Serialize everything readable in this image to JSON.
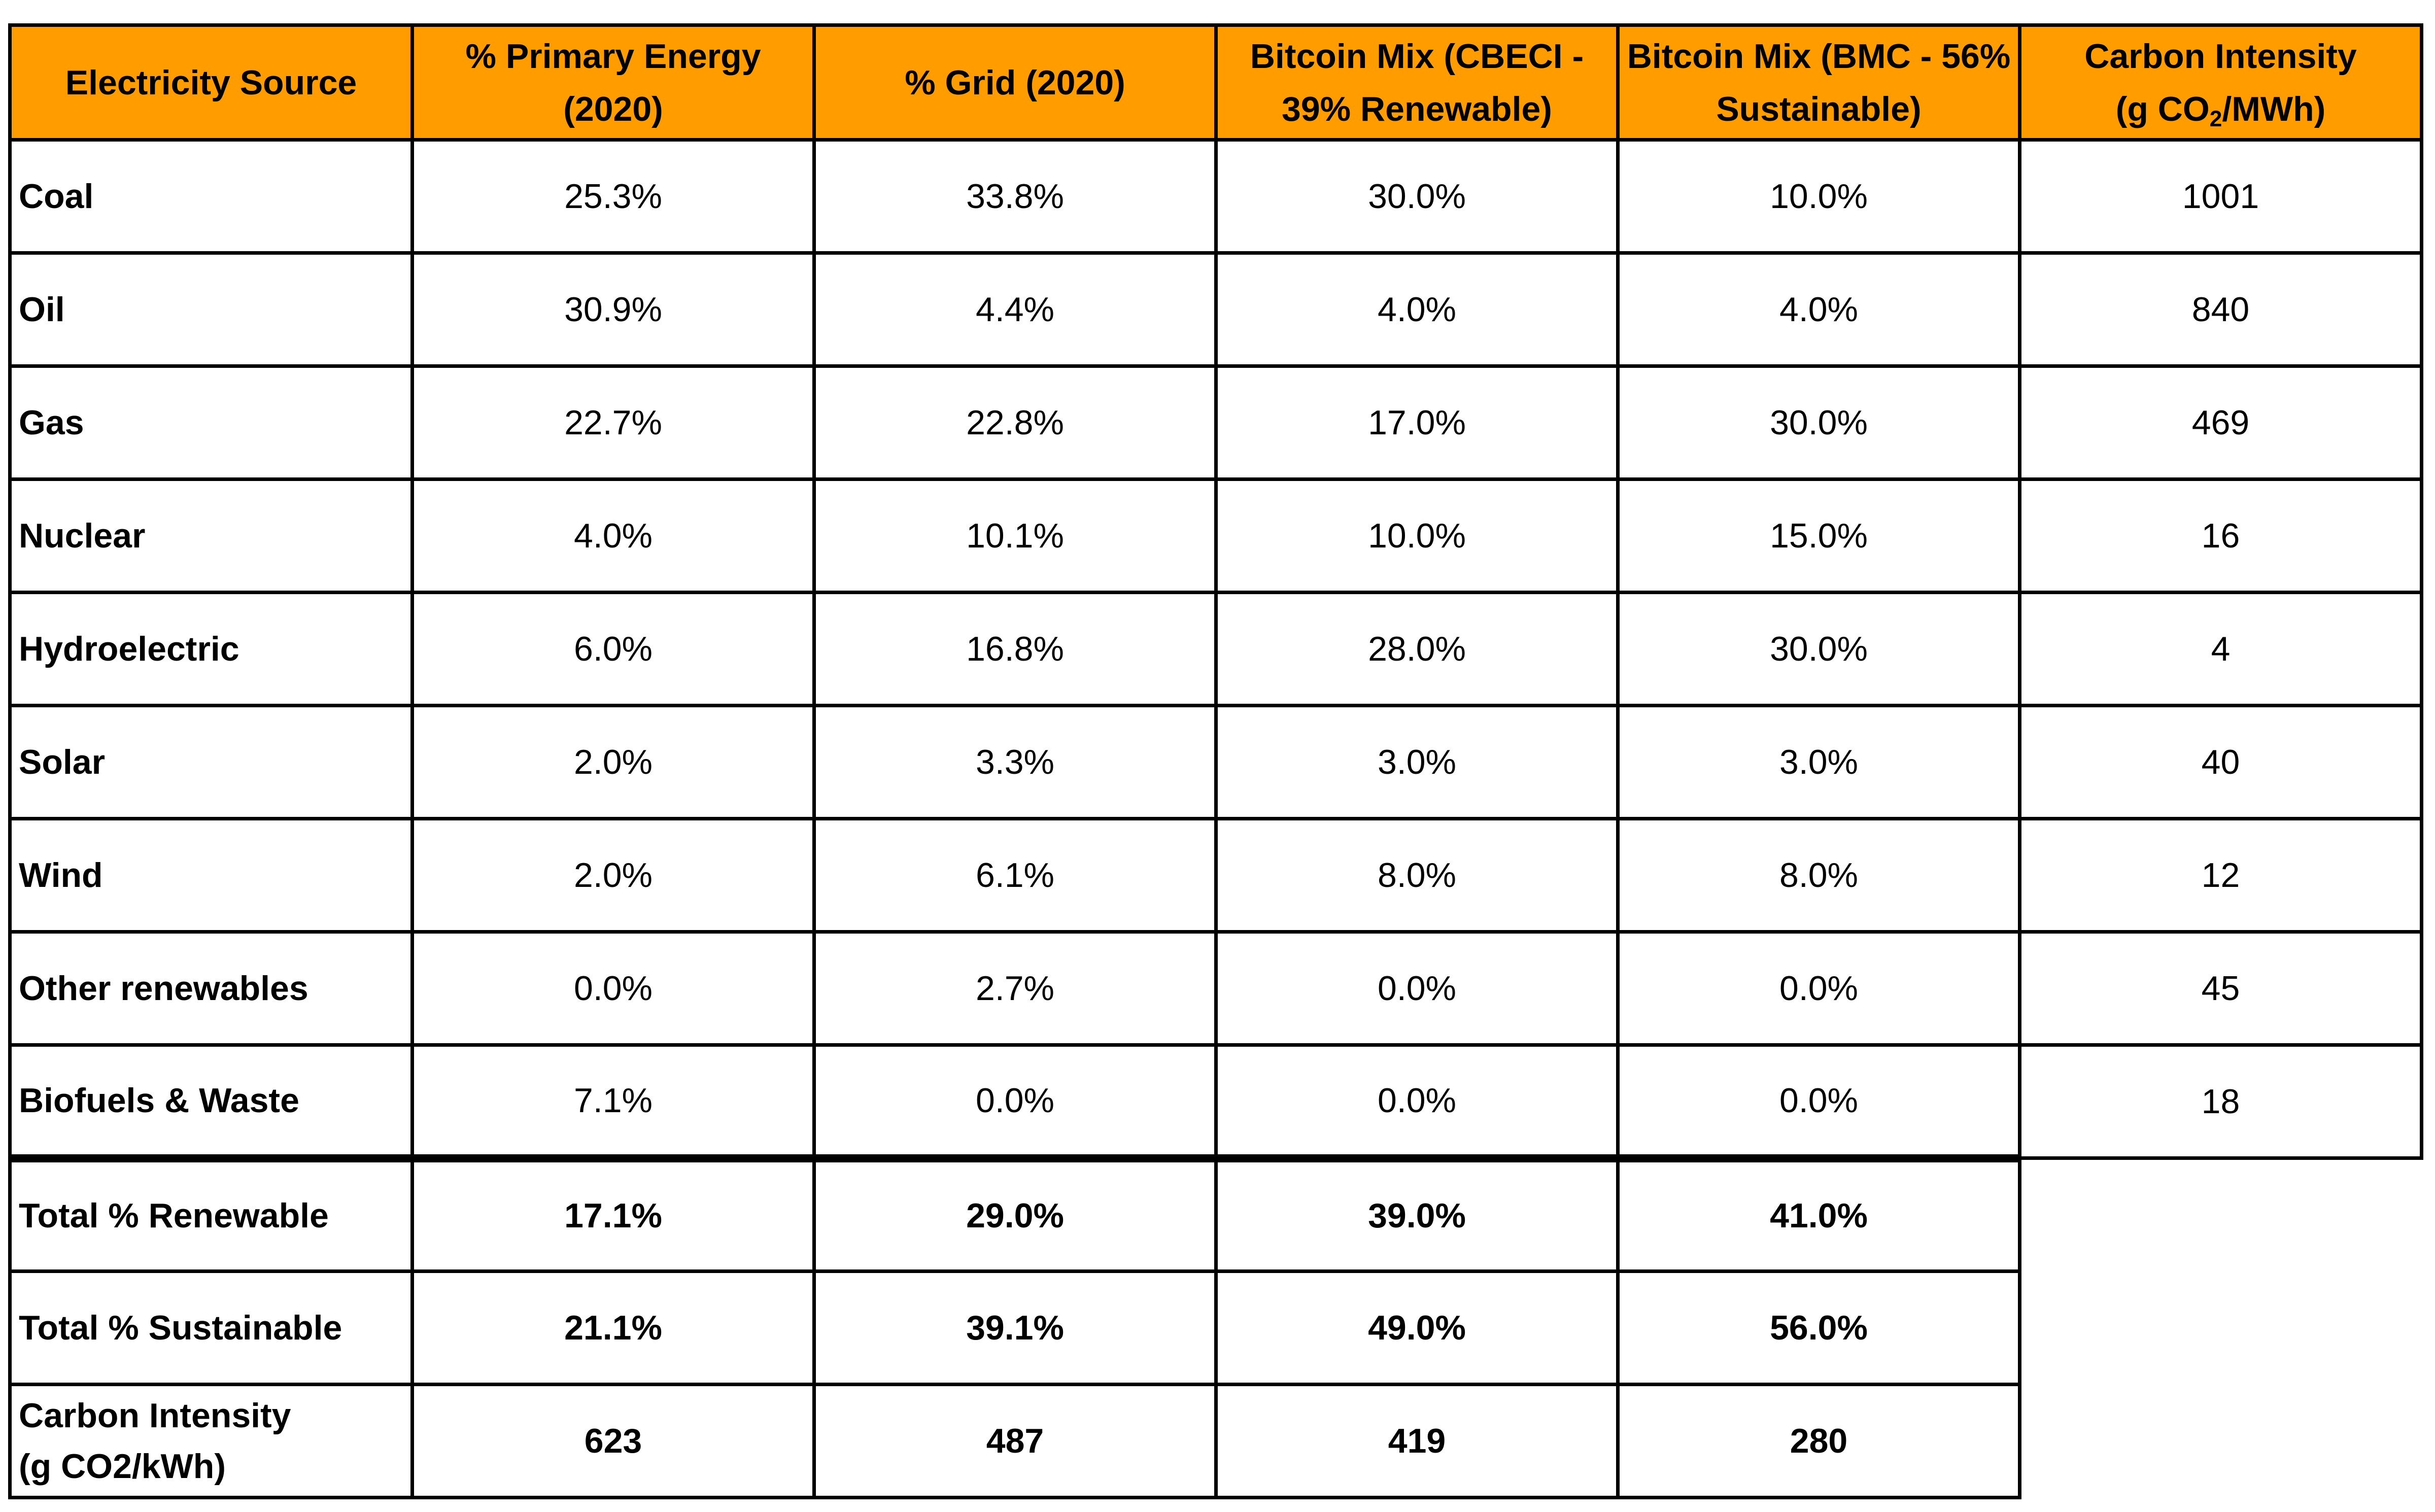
{
  "header": {
    "source": "Electricity Source",
    "primary": "% Primary Energy (2020)",
    "grid": "% Grid (2020)",
    "cbeci": "Bitcoin Mix (CBECI - 39% Renewable)",
    "bmc": "Bitcoin Mix (BMC - 56% Sustainable)",
    "ci_prefix": "Carbon Intensity",
    "ci_unit_a": "(g CO",
    "ci_unit_sub": "2",
    "ci_unit_b": "/MWh)"
  },
  "rows": [
    {
      "source": "Coal",
      "primary": "25.3%",
      "grid": "33.8%",
      "cbeci": "30.0%",
      "bmc": "10.0%",
      "ci": "1001"
    },
    {
      "source": "Oil",
      "primary": "30.9%",
      "grid": "4.4%",
      "cbeci": "4.0%",
      "bmc": "4.0%",
      "ci": "840"
    },
    {
      "source": "Gas",
      "primary": "22.7%",
      "grid": "22.8%",
      "cbeci": "17.0%",
      "bmc": "30.0%",
      "ci": "469"
    },
    {
      "source": "Nuclear",
      "primary": "4.0%",
      "grid": "10.1%",
      "cbeci": "10.0%",
      "bmc": "15.0%",
      "ci": "16"
    },
    {
      "source": "Hydroelectric",
      "primary": "6.0%",
      "grid": "16.8%",
      "cbeci": "28.0%",
      "bmc": "30.0%",
      "ci": "4"
    },
    {
      "source": "Solar",
      "primary": "2.0%",
      "grid": "3.3%",
      "cbeci": "3.0%",
      "bmc": "3.0%",
      "ci": "40"
    },
    {
      "source": "Wind",
      "primary": "2.0%",
      "grid": "6.1%",
      "cbeci": "8.0%",
      "bmc": "8.0%",
      "ci": "12"
    },
    {
      "source": "Other renewables",
      "primary": "0.0%",
      "grid": "2.7%",
      "cbeci": "0.0%",
      "bmc": "0.0%",
      "ci": "45"
    },
    {
      "source": "Biofuels & Waste",
      "primary": "7.1%",
      "grid": "0.0%",
      "cbeci": "0.0%",
      "bmc": "0.0%",
      "ci": "18"
    }
  ],
  "totals": [
    {
      "label": "Total % Renewable",
      "primary": "17.1%",
      "grid": "29.0%",
      "cbeci": "39.0%",
      "bmc": "41.0%"
    },
    {
      "label": "Total % Sustainable",
      "primary": "21.1%",
      "grid": "39.1%",
      "cbeci": "49.0%",
      "bmc": "56.0%"
    }
  ],
  "carbon_total": {
    "label_line1": "Carbon Intensity",
    "label_line2": "(g CO2/kWh)",
    "primary": "623",
    "grid": "487",
    "cbeci": "419",
    "bmc": "280"
  },
  "colors": {
    "header_bg": "#ff9c00",
    "border": "#000000"
  }
}
